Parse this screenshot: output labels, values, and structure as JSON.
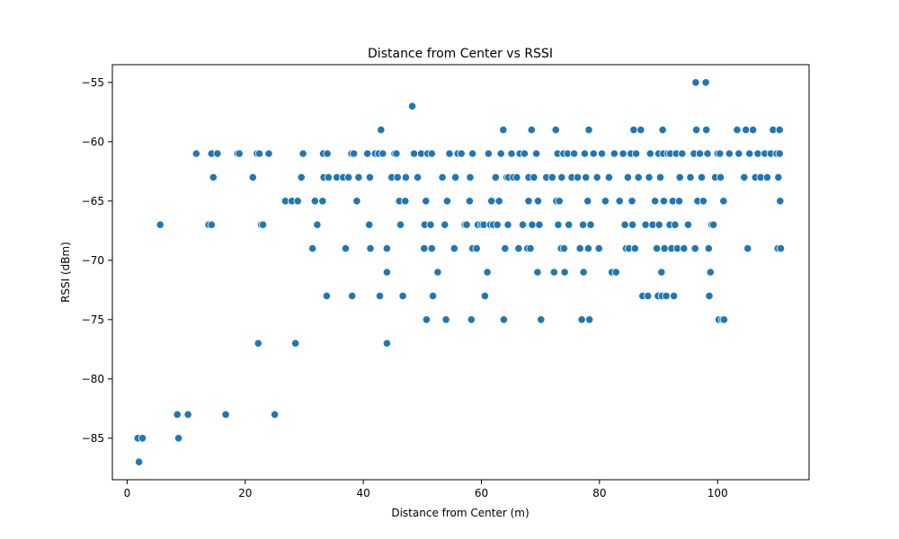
{
  "chart_data": {
    "type": "scatter",
    "title": "Distance from Center vs RSSI",
    "xlabel": "Distance from Center (m)",
    "ylabel": "RSSI (dBm)",
    "xlim": [
      -2.5,
      115.5
    ],
    "ylim": [
      -88.5,
      -53.5
    ],
    "xticks": [
      0,
      20,
      40,
      60,
      80,
      100
    ],
    "yticks": [
      -85,
      -80,
      -75,
      -70,
      -65,
      -60,
      -55
    ],
    "xtick_labels": [
      "0",
      "20",
      "40",
      "60",
      "80",
      "100"
    ],
    "ytick_labels": [
      "−85",
      "−80",
      "−75",
      "−70",
      "−65",
      "−60",
      "−55"
    ],
    "grid": false,
    "marker_color": "#1f77b4",
    "points": [
      [
        1.8,
        -85
      ],
      [
        2.6,
        -85
      ],
      [
        2.0,
        -87
      ],
      [
        8.5,
        -83
      ],
      [
        8.7,
        -85
      ],
      [
        10.3,
        -83
      ],
      [
        16.7,
        -83
      ],
      [
        25.0,
        -83
      ],
      [
        5.6,
        -67
      ],
      [
        11.7,
        -61
      ],
      [
        13.8,
        -67
      ],
      [
        14.3,
        -67
      ],
      [
        14.3,
        -61
      ],
      [
        14.6,
        -63
      ],
      [
        15.3,
        -61
      ],
      [
        18.7,
        -61
      ],
      [
        19.0,
        -61
      ],
      [
        21.3,
        -63
      ],
      [
        22.0,
        -61
      ],
      [
        22.4,
        -61
      ],
      [
        22.7,
        -67
      ],
      [
        23.0,
        -67
      ],
      [
        24.0,
        -61
      ],
      [
        22.2,
        -77
      ],
      [
        28.5,
        -77
      ],
      [
        26.8,
        -65
      ],
      [
        27.9,
        -65
      ],
      [
        28.9,
        -65
      ],
      [
        29.5,
        -63
      ],
      [
        29.8,
        -61
      ],
      [
        31.4,
        -69
      ],
      [
        31.8,
        -65
      ],
      [
        32.2,
        -67
      ],
      [
        33.1,
        -65
      ],
      [
        33.2,
        -61
      ],
      [
        33.3,
        -63
      ],
      [
        33.8,
        -73
      ],
      [
        33.9,
        -61
      ],
      [
        34.1,
        -63
      ],
      [
        35.5,
        -63
      ],
      [
        36.6,
        -63
      ],
      [
        37.0,
        -69
      ],
      [
        37.5,
        -63
      ],
      [
        38.0,
        -61
      ],
      [
        38.1,
        -73
      ],
      [
        38.4,
        -61
      ],
      [
        38.9,
        -65
      ],
      [
        39.2,
        -63
      ],
      [
        40.7,
        -61
      ],
      [
        41.0,
        -67
      ],
      [
        41.1,
        -63
      ],
      [
        41.2,
        -69
      ],
      [
        42.0,
        -61
      ],
      [
        42.6,
        -61
      ],
      [
        42.8,
        -73
      ],
      [
        43.0,
        -59
      ],
      [
        43.3,
        -61
      ],
      [
        44.0,
        -77
      ],
      [
        44.0,
        -71
      ],
      [
        44.0,
        -69
      ],
      [
        44.8,
        -63
      ],
      [
        45.3,
        -61
      ],
      [
        45.6,
        -61
      ],
      [
        45.8,
        -63
      ],
      [
        46.1,
        -65
      ],
      [
        46.3,
        -67
      ],
      [
        46.7,
        -73
      ],
      [
        47.1,
        -65
      ],
      [
        47.2,
        -63
      ],
      [
        48.3,
        -57
      ],
      [
        48.6,
        -61
      ],
      [
        49.2,
        -63
      ],
      [
        49.8,
        -61
      ],
      [
        50.3,
        -69
      ],
      [
        50.4,
        -67
      ],
      [
        50.6,
        -65
      ],
      [
        50.7,
        -75
      ],
      [
        50.9,
        -61
      ],
      [
        51.4,
        -67
      ],
      [
        51.6,
        -69
      ],
      [
        51.6,
        -61
      ],
      [
        51.8,
        -73
      ],
      [
        52.6,
        -71
      ],
      [
        53.4,
        -63
      ],
      [
        53.8,
        -67
      ],
      [
        54.0,
        -75
      ],
      [
        54.2,
        -65
      ],
      [
        54.6,
        -61
      ],
      [
        55.4,
        -69
      ],
      [
        55.6,
        -63
      ],
      [
        56.0,
        -61
      ],
      [
        56.6,
        -61
      ],
      [
        57.2,
        -67
      ],
      [
        57.5,
        -67
      ],
      [
        58.0,
        -65
      ],
      [
        58.1,
        -63
      ],
      [
        58.3,
        -75
      ],
      [
        58.5,
        -61
      ],
      [
        58.5,
        -69
      ],
      [
        59.2,
        -69
      ],
      [
        59.4,
        -67
      ],
      [
        60.0,
        -67
      ],
      [
        60.4,
        -67
      ],
      [
        60.6,
        -73
      ],
      [
        61.0,
        -71
      ],
      [
        61.2,
        -61
      ],
      [
        61.5,
        -67
      ],
      [
        61.7,
        -65
      ],
      [
        62.0,
        -67
      ],
      [
        62.4,
        -63
      ],
      [
        62.7,
        -67
      ],
      [
        63.0,
        -65
      ],
      [
        63.3,
        -61
      ],
      [
        63.7,
        -59
      ],
      [
        63.8,
        -75
      ],
      [
        64.0,
        -69
      ],
      [
        64.3,
        -63
      ],
      [
        64.5,
        -67
      ],
      [
        64.6,
        -63
      ],
      [
        65.1,
        -61
      ],
      [
        65.4,
        -63
      ],
      [
        66.0,
        -63
      ],
      [
        66.3,
        -69
      ],
      [
        66.5,
        -61
      ],
      [
        67.0,
        -67
      ],
      [
        67.3,
        -61
      ],
      [
        67.8,
        -69
      ],
      [
        68.0,
        -65
      ],
      [
        68.0,
        -63
      ],
      [
        68.3,
        -69
      ],
      [
        68.5,
        -59
      ],
      [
        68.6,
        -67
      ],
      [
        68.9,
        -63
      ],
      [
        69.3,
        -61
      ],
      [
        69.5,
        -71
      ],
      [
        69.6,
        -65
      ],
      [
        69.8,
        -67
      ],
      [
        70.1,
        -75
      ],
      [
        71.0,
        -63
      ],
      [
        72.0,
        -63
      ],
      [
        72.3,
        -71
      ],
      [
        72.6,
        -59
      ],
      [
        72.7,
        -65
      ],
      [
        72.9,
        -61
      ],
      [
        73.0,
        -67
      ],
      [
        73.2,
        -65
      ],
      [
        73.5,
        -69
      ],
      [
        73.6,
        -63
      ],
      [
        73.9,
        -61
      ],
      [
        74.0,
        -69
      ],
      [
        74.1,
        -71
      ],
      [
        74.6,
        -61
      ],
      [
        74.8,
        -67
      ],
      [
        75.3,
        -63
      ],
      [
        75.7,
        -61
      ],
      [
        76.3,
        -63
      ],
      [
        76.7,
        -69
      ],
      [
        77.0,
        -75
      ],
      [
        77.2,
        -67
      ],
      [
        77.3,
        -71
      ],
      [
        77.5,
        -61
      ],
      [
        77.7,
        -63
      ],
      [
        78.0,
        -65
      ],
      [
        78.1,
        -69
      ],
      [
        78.2,
        -59
      ],
      [
        78.3,
        -75
      ],
      [
        78.5,
        -67
      ],
      [
        79.0,
        -61
      ],
      [
        79.6,
        -63
      ],
      [
        79.9,
        -69
      ],
      [
        80.4,
        -61
      ],
      [
        81.0,
        -65
      ],
      [
        81.6,
        -63
      ],
      [
        82.1,
        -71
      ],
      [
        82.5,
        -61
      ],
      [
        82.8,
        -71
      ],
      [
        83.4,
        -65
      ],
      [
        84.0,
        -61
      ],
      [
        84.3,
        -67
      ],
      [
        84.5,
        -69
      ],
      [
        84.8,
        -63
      ],
      [
        85.0,
        -69
      ],
      [
        85.3,
        -61
      ],
      [
        85.5,
        -65
      ],
      [
        85.6,
        -67
      ],
      [
        85.8,
        -59
      ],
      [
        86.0,
        -69
      ],
      [
        86.2,
        -61
      ],
      [
        86.6,
        -63
      ],
      [
        87.0,
        -59
      ],
      [
        87.3,
        -73
      ],
      [
        87.8,
        -67
      ],
      [
        88.2,
        -73
      ],
      [
        88.4,
        -63
      ],
      [
        88.6,
        -61
      ],
      [
        89.0,
        -67
      ],
      [
        89.4,
        -65
      ],
      [
        89.7,
        -69
      ],
      [
        89.9,
        -73
      ],
      [
        90.0,
        -61
      ],
      [
        90.1,
        -67
      ],
      [
        90.3,
        -63
      ],
      [
        90.5,
        -71
      ],
      [
        90.6,
        -73
      ],
      [
        90.7,
        -59
      ],
      [
        90.8,
        -61
      ],
      [
        90.9,
        -65
      ],
      [
        91.0,
        -69
      ],
      [
        91.3,
        -73
      ],
      [
        91.6,
        -61
      ],
      [
        91.9,
        -67
      ],
      [
        92.0,
        -61
      ],
      [
        92.2,
        -69
      ],
      [
        92.4,
        -65
      ],
      [
        92.6,
        -73
      ],
      [
        92.8,
        -67
      ],
      [
        93.0,
        -61
      ],
      [
        93.2,
        -69
      ],
      [
        93.5,
        -65
      ],
      [
        93.6,
        -63
      ],
      [
        94.0,
        -61
      ],
      [
        94.3,
        -69
      ],
      [
        95.0,
        -67
      ],
      [
        95.4,
        -63
      ],
      [
        96.0,
        -61
      ],
      [
        96.2,
        -69
      ],
      [
        96.3,
        -55
      ],
      [
        96.4,
        -59
      ],
      [
        96.6,
        -65
      ],
      [
        97.0,
        -61
      ],
      [
        97.3,
        -63
      ],
      [
        97.6,
        -65
      ],
      [
        98.0,
        -55
      ],
      [
        98.1,
        -59
      ],
      [
        98.3,
        -61
      ],
      [
        98.5,
        -69
      ],
      [
        98.6,
        -73
      ],
      [
        98.8,
        -71
      ],
      [
        99.0,
        -67
      ],
      [
        99.3,
        -67
      ],
      [
        99.6,
        -63
      ],
      [
        100.0,
        -61
      ],
      [
        100.2,
        -75
      ],
      [
        100.4,
        -61
      ],
      [
        100.5,
        -63
      ],
      [
        100.8,
        -75
      ],
      [
        101.1,
        -75
      ],
      [
        101.0,
        -65
      ],
      [
        102.0,
        -61
      ],
      [
        103.3,
        -59
      ],
      [
        103.6,
        -61
      ],
      [
        104.5,
        -63
      ],
      [
        104.8,
        -59
      ],
      [
        105.1,
        -69
      ],
      [
        105.4,
        -61
      ],
      [
        106.0,
        -59
      ],
      [
        106.4,
        -63
      ],
      [
        106.8,
        -61
      ],
      [
        107.3,
        -63
      ],
      [
        108.0,
        -61
      ],
      [
        108.4,
        -63
      ],
      [
        109.0,
        -61
      ],
      [
        109.4,
        -59
      ],
      [
        110.0,
        -61
      ],
      [
        110.2,
        -69
      ],
      [
        110.3,
        -63
      ],
      [
        110.5,
        -59
      ],
      [
        110.6,
        -65
      ],
      [
        110.7,
        -69
      ],
      [
        110.5,
        -61
      ]
    ]
  }
}
